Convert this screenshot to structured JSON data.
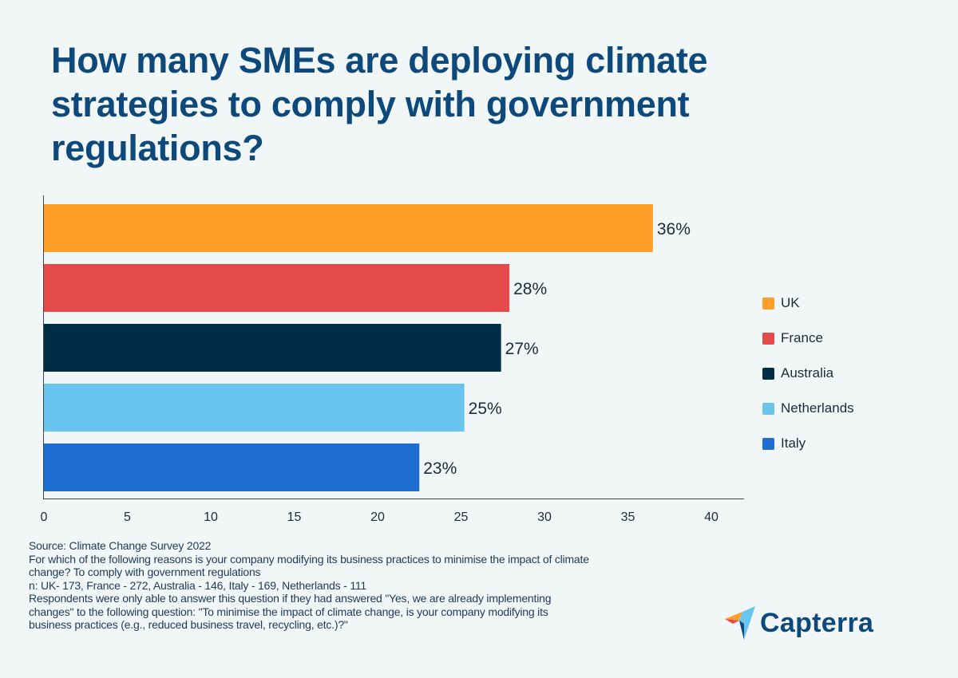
{
  "title_lines": [
    "How many SMEs are deploying climate",
    "strategies to comply with government",
    "regulations?"
  ],
  "chart_data": {
    "type": "bar",
    "orientation": "horizontal",
    "categories": [
      "UK",
      "France",
      "Australia",
      "Netherlands",
      "Italy"
    ],
    "values": [
      36.5,
      27.9,
      27.4,
      25.2,
      22.5
    ],
    "data_labels": [
      "36%",
      "28%",
      "27%",
      "25%",
      "23%"
    ],
    "colors": [
      "#ff9f2a",
      "#e54a4a",
      "#002d45",
      "#6ac5ee",
      "#1e6fd1"
    ],
    "xlim": [
      0,
      42
    ],
    "xticks": [
      0,
      5,
      10,
      15,
      20,
      25,
      30,
      35,
      40
    ],
    "xlabel": "",
    "ylabel": "",
    "grid": false,
    "legend_placement": "right"
  },
  "footer_lines": [
    "Source: Climate Change Survey 2022",
    "For which of the following reasons is your company modifying its business practices to minimise the impact of climate",
    "change?  To comply with government regulations",
    "n: UK- 173, France - 272, Australia - 146, Italy - 169, Netherlands - 111",
    "Respondents were only able to answer this question if they had answered \"Yes, we are already implementing",
    "changes\" to the following question: \"To minimise the impact of climate change, is your company modifying its",
    "business practices (e.g., reduced business travel, recycling, etc.)?\""
  ],
  "logo": {
    "text": "Capterra"
  }
}
